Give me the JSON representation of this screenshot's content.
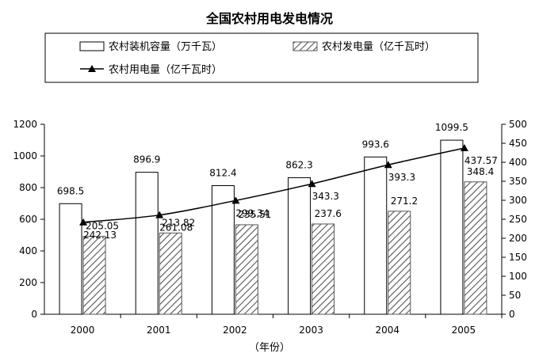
{
  "chart_data": {
    "type": "bar",
    "title": "全国农村用电发电情况",
    "xlabel": "（年份）",
    "categories": [
      "2000",
      "2001",
      "2002",
      "2003",
      "2004",
      "2005"
    ],
    "left_axis": {
      "min": 0,
      "max": 1200,
      "ticks": [
        0,
        200,
        400,
        600,
        800,
        1000,
        1200
      ]
    },
    "right_axis": {
      "min": 0,
      "max": 500,
      "ticks": [
        0,
        50,
        100,
        150,
        200,
        250,
        300,
        350,
        400,
        450,
        500
      ]
    },
    "grid": false,
    "legend_placement": "top",
    "series": [
      {
        "name": "农村装机容量（万千瓦）",
        "type": "bar",
        "axis": "left",
        "style": "hollow",
        "values": [
          698.5,
          896.9,
          812.4,
          862.3,
          993.6,
          1099.5
        ],
        "labels": [
          "698.5",
          "896.9",
          "812.4",
          "862.3",
          "993.6",
          "1099.5"
        ]
      },
      {
        "name": "农村发电量（亿千瓦时）",
        "type": "bar",
        "axis": "right",
        "style": "hatched",
        "values": [
          205.05,
          213.82,
          235.51,
          237.6,
          271.2,
          348.4
        ],
        "labels": [
          "205.05",
          "213.82",
          "235.51",
          "237.6",
          "271.2",
          "348.4"
        ]
      },
      {
        "name": "农村用电量（亿千瓦时）",
        "type": "line",
        "axis": "right",
        "marker": "triangle",
        "values": [
          242.13,
          261.08,
          299.34,
          343.3,
          393.3,
          437.57
        ],
        "labels": [
          "242.13",
          "261.08",
          "299.34",
          "343.3",
          "393.3",
          "437.57"
        ]
      }
    ]
  }
}
